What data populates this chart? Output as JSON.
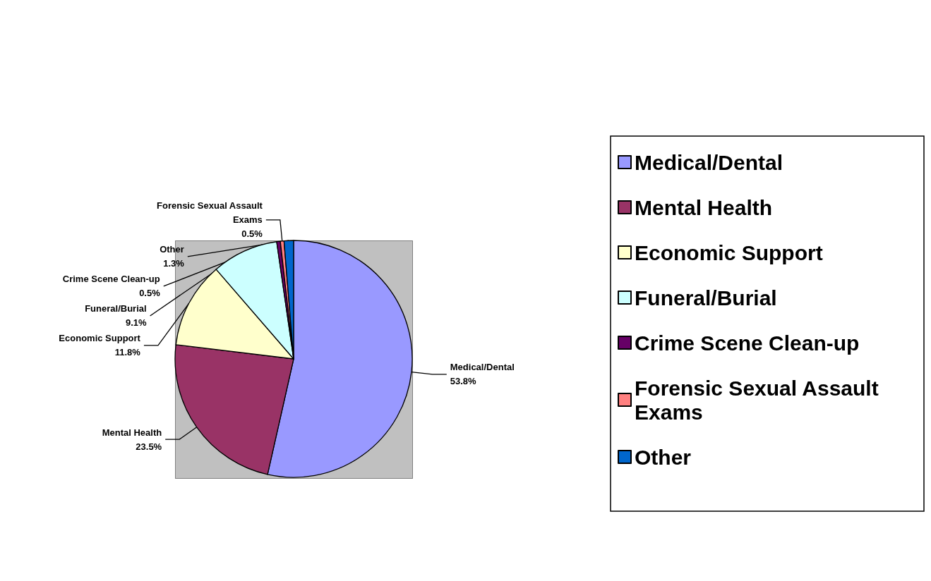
{
  "chart_data": {
    "type": "pie",
    "categories": [
      "Medical/Dental",
      "Mental Health",
      "Economic Support",
      "Funeral/Burial",
      "Crime Scene Clean-up",
      "Forensic Sexual Assault Exams",
      "Other"
    ],
    "values": [
      53.8,
      23.5,
      11.8,
      9.1,
      0.5,
      0.5,
      1.3
    ],
    "value_labels": [
      "53.8%",
      "23.5%",
      "11.8%",
      "9.1%",
      "0.5%",
      "0.5%",
      "1.3%"
    ],
    "colors": [
      "#9999ff",
      "#993366",
      "#ffffcc",
      "#ccffff",
      "#660066",
      "#ff8080",
      "#0066cc"
    ],
    "legend": "right"
  }
}
